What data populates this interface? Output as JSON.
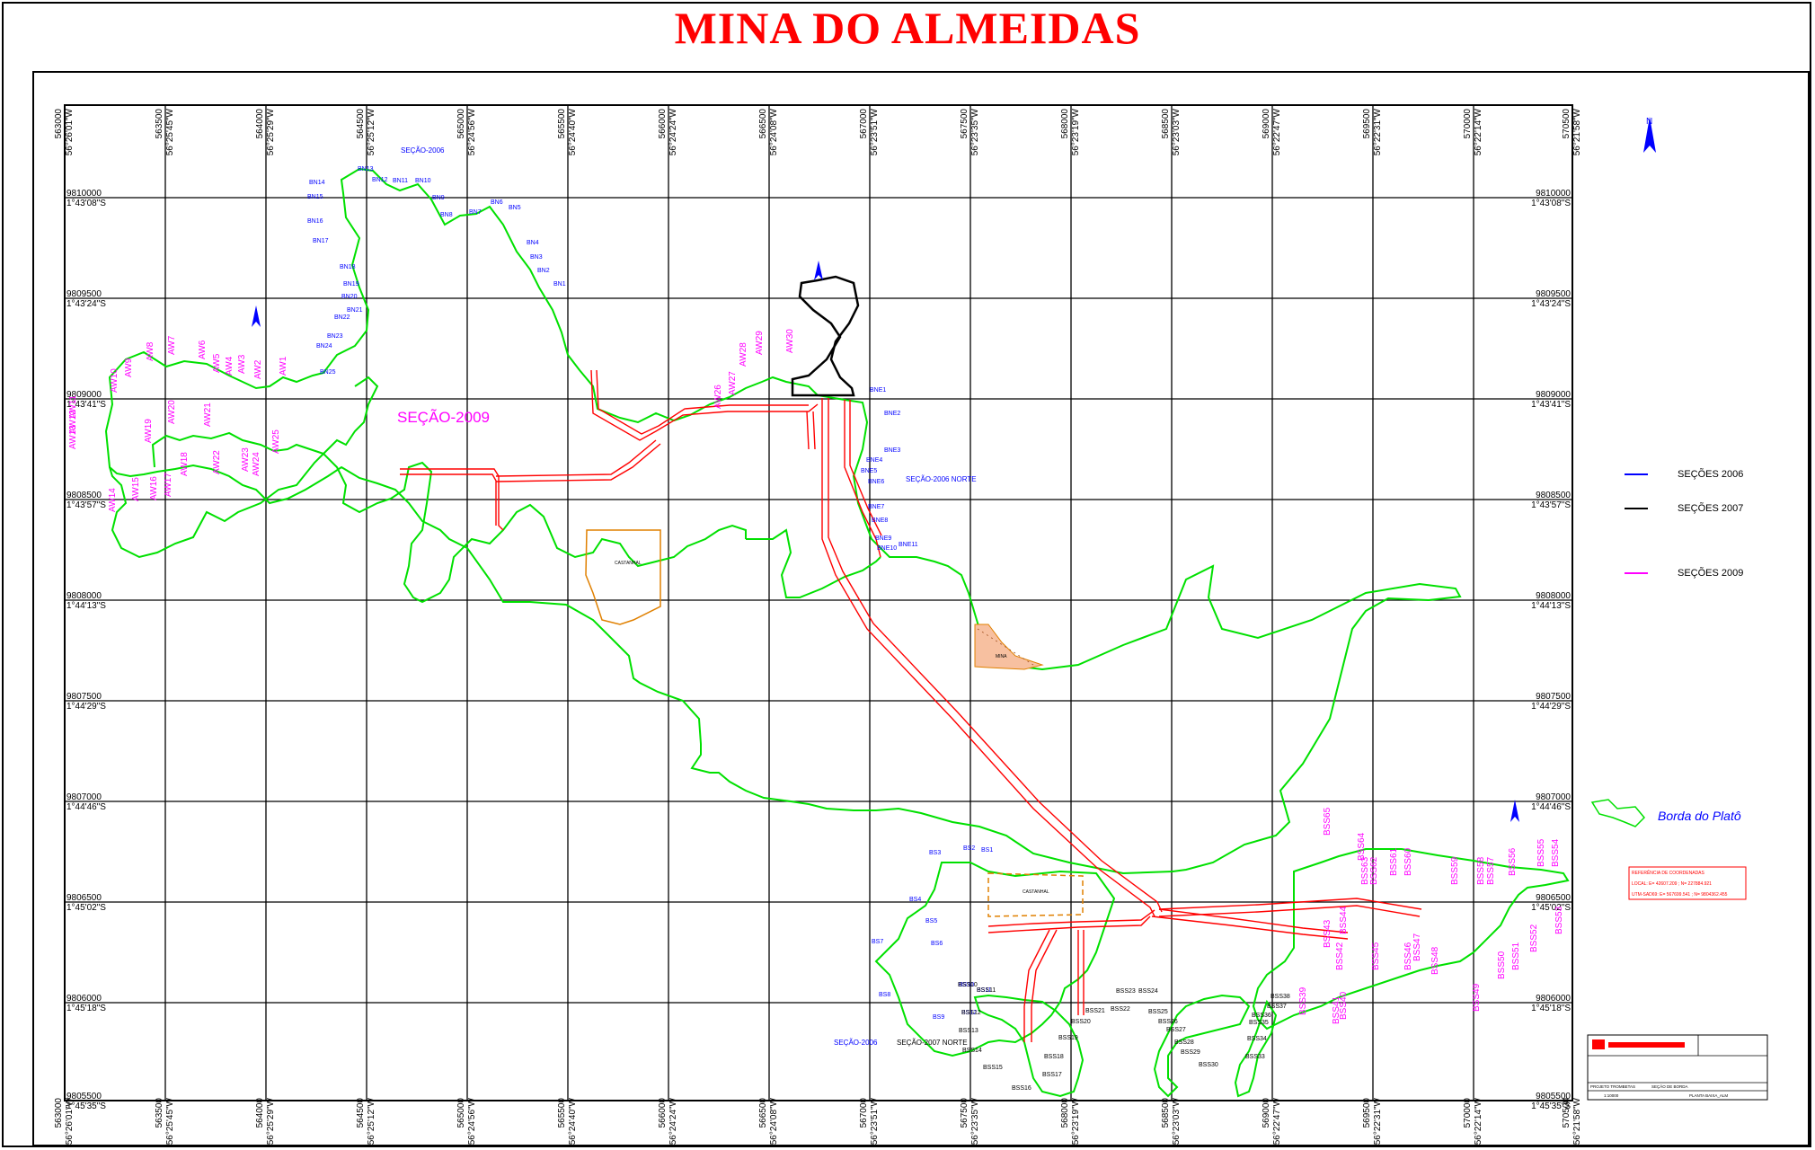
{
  "title": "MINA DO ALMEIDAS",
  "colors": {
    "title": "#ff0000",
    "plateau": "#00e000",
    "road": "#ff0000",
    "sec2006": "#0000ff",
    "sec2007": "#000000",
    "sec2009": "#ff00ff",
    "grid": "#000000",
    "mina": "#e08000"
  },
  "grid": {
    "top_ticks": [
      "563000",
      "563500",
      "564000",
      "564500",
      "565000",
      "565500",
      "566000",
      "566500",
      "567000",
      "567500",
      "568000",
      "568500",
      "569000",
      "569500",
      "570000",
      "570500"
    ],
    "top_lon": [
      "56°26'01\"W",
      "56°25'45\"W",
      "56°25'29\"W",
      "56°25'12\"W",
      "56°24'56\"W",
      "56°24'40\"W",
      "56°24'24\"W",
      "56°24'08\"W",
      "56°23'51\"W",
      "56°23'35\"W",
      "56°23'19\"W",
      "56°23'03\"W",
      "56°22'47\"W",
      "56°22'31\"W",
      "56°22'14\"W",
      "56°21'58\"W"
    ],
    "left_ticks": [
      "9810000",
      "9809500",
      "9809000",
      "9808500",
      "9808000",
      "9807500",
      "9807000",
      "9806500",
      "9806000",
      "9805500"
    ],
    "left_lat": [
      "1°43'08\"S",
      "1°43'24\"S",
      "1°43'41\"S",
      "1°43'57\"S",
      "1°44'13\"S",
      "1°44'29\"S",
      "1°44'46\"S",
      "1°45'02\"S",
      "1°45'18\"S",
      "1°45'35\"S"
    ]
  },
  "section_labels": {
    "secao_2006": "SEÇÃO-2006",
    "secao_2009": "SEÇÃO-2009",
    "secao_2006_norte": "SEÇÃO-2006 NORTE",
    "secao_2007_norte": "SEÇÃO-2007 NORTE",
    "secao_2006_b": "SEÇÃO-2006",
    "castanhal_1": "CASTANHAL",
    "castanhal_2": "CASTANHAL",
    "mina": "MINA"
  },
  "bn_labels": [
    "BN1",
    "BN2",
    "BN3",
    "BN4",
    "BN5",
    "BN6",
    "BN7",
    "BN8",
    "BN9",
    "BN10",
    "BN11",
    "BN12",
    "BN13",
    "BN14",
    "BN15",
    "BN16",
    "BN17",
    "BN18",
    "BN19",
    "BN20",
    "BN21",
    "BN22",
    "BN23",
    "BN24",
    "BN25"
  ],
  "bne_labels": [
    "BNE1",
    "BNE2",
    "BNE3",
    "BNE4",
    "BNE5",
    "BNE6",
    "BNE7",
    "BNE8",
    "BNE9",
    "BNE10",
    "BNE11"
  ],
  "bs_labels": [
    "BS1",
    "BS2",
    "BS3",
    "BS4",
    "BS5",
    "BS6",
    "BS7",
    "BS8",
    "BS9",
    "BS10",
    "BS11",
    "BS12"
  ],
  "aw_labels": [
    "AW1",
    "AW2",
    "AW3",
    "AW4",
    "AW5",
    "AW6",
    "AW7",
    "AW8",
    "AW9",
    "AW10",
    "AW11",
    "AW12",
    "AW13",
    "AW14",
    "AW15",
    "AW16",
    "AW17",
    "AW18",
    "AW19",
    "AW20",
    "AW21",
    "AW22",
    "AW23",
    "AW24",
    "AW25",
    "AW26",
    "AW27",
    "AW28",
    "AW29",
    "AW30"
  ],
  "bss_labels": [
    "BSS10",
    "BSS11",
    "BSS12",
    "BSS13",
    "BSS14",
    "BSS15",
    "BSS16",
    "BSS17",
    "BSS18",
    "BSS19",
    "BSS20",
    "BSS21",
    "BSS22",
    "BSS23",
    "BSS24",
    "BSS25",
    "BSS26",
    "BSS27",
    "BSS28",
    "BSS29",
    "BSS30",
    "BSS33",
    "BSS34",
    "BSS35",
    "BSS36",
    "BSS37",
    "BSS38"
  ],
  "bss_magenta": [
    "BSS39",
    "BSS40",
    "BSS41",
    "BSS42",
    "BSS43",
    "BSS44",
    "BSS45",
    "BSS46",
    "BSS47",
    "BSS48",
    "BSS49",
    "BSS50",
    "BSS51",
    "BSS52",
    "BSS53",
    "BSS54",
    "BSS55",
    "BSS56",
    "BSS57",
    "BSS58",
    "BSS59",
    "BSS60",
    "BSS61",
    "BSS62",
    "BSS63",
    "BSS64",
    "BSS65"
  ],
  "legend": {
    "s2006": "SEÇÕES 2006",
    "s2007": "SEÇÕES 2007",
    "s2009": "SEÇÕES 2009",
    "borda": "Borda do Platô"
  },
  "reference": {
    "title": "REFERÊNCIA DE COORDENADAS",
    "local": "LOCAL: E= 42607.209 ; N= 227884.921",
    "utm": "UTM-SAD69: E= 567699.541 ; N= 9804362.455"
  },
  "titleblock": {
    "project": "PROJETO TROMBETAS",
    "section": "SEÇÃO DE BORDA",
    "map": "PLANTA BAIXA_ALM",
    "scale": "1:10000"
  }
}
